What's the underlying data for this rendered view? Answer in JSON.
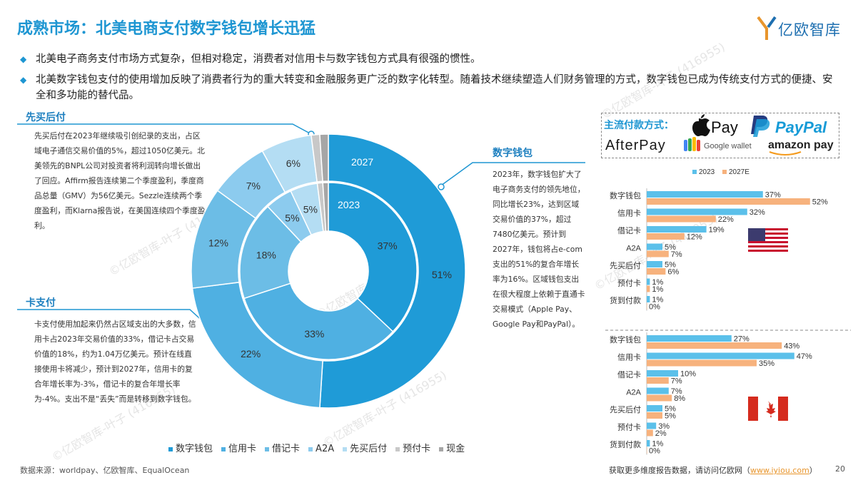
{
  "page": {
    "title": "成熟市场：北美电商支付数字钱包增长迅猛",
    "logo_text": "亿欧智库",
    "bullets": [
      "北美电子商务支付市场方式复杂，但相对稳定，消费者对信用卡与数字钱包方式具有很强的惯性。",
      "北美数字钱包支付的使用增加反映了消费者行为的重大转变和金融服务更广泛的数字化转型。随着技术继续塑造人们财务管理的方式，数字钱包已成为传统支付方式的便捷、安全和多功能的替代品。"
    ],
    "source": "数据来源：worldpay、亿欧智库、EqualOcean",
    "footer_text": "获取更多维度报告数据，请访问亿欧网（",
    "footer_link": "www.iyiou.com",
    "footer_end": "）",
    "page_number": "20",
    "watermark": "©亿欧智库-叶子 (416955)"
  },
  "panels": {
    "bnpl": {
      "title": "先买后付",
      "text": "先买后付在2023年继续吸引创纪录的支出，占区域电子通信交易价值的5%，超过1050亿美元。北美领先的BNPL公司对投资者将利润转向增长做出了回应。Affirm报告连续第二个季度盈利，季度商品总量（GMV）为56亿美元。Sezzle连续两个季度盈利，而Klarna报告说，在美国连续四个季度盈利。"
    },
    "card": {
      "title": "卡支付",
      "text": "卡支付使用加起来仍然占区域支出的大多数，信用卡占2023年交易价值的33%，借记卡占交易价值的18%，约为1.04万亿美元。预计在线直接使用卡将减少，预计到2027年，信用卡的复合年增长率为-3%，借记卡的复合年增长率为-4%。支出不是“丢失”而是转移到数字钱包。"
    },
    "wallet": {
      "title": "数字钱包",
      "text": "2023年，数字钱包扩大了电子商务支付的领先地位，同比增长23%，达到区域交易价值的37%，超过7480亿美元。预计到2027年，钱包将占e-com支出的51%的复合年增长率为16%。区域钱包支出在很大程度上依赖于直通卡交易模式（Apple Pay、Google Pay和PayPal）。"
    }
  },
  "payments": {
    "label": "主流付款方式：",
    "logos": [
      "Pay",
      "PayPal",
      "AfterPay",
      "Google wallet",
      "amazon pay"
    ]
  },
  "colors": {
    "title_blue": "#1e96d2",
    "wallet": "#1f9bd7",
    "credit": "#4fb0e2",
    "debit": "#6cbde6",
    "a2a": "#8ccbee",
    "bnpl": "#b4ddf3",
    "prepaid": "#c8c8c8",
    "cash": "#a6a6a6",
    "bar_2023": "#5bc0ea",
    "bar_2027": "#f7b27d"
  },
  "chart_data": [
    {
      "type": "pie",
      "subtype": "donut",
      "title": "",
      "legend": [
        "数字钱包",
        "信用卡",
        "借记卡",
        "A2A",
        "先买后付",
        "预付卡",
        "现金"
      ],
      "legend_position": "bottom",
      "series": [
        {
          "name": "2023",
          "labels": [
            "数字钱包",
            "信用卡",
            "借记卡",
            "A2A",
            "先买后付",
            "预付卡",
            "现金"
          ],
          "values": [
            37,
            33,
            18,
            5,
            5,
            1,
            1
          ]
        },
        {
          "name": "2027",
          "labels": [
            "数字钱包",
            "信用卡",
            "借记卡",
            "A2A",
            "先买后付",
            "预付卡",
            "现金"
          ],
          "values": [
            51,
            22,
            12,
            7,
            6,
            1,
            1
          ]
        }
      ]
    },
    {
      "type": "bar",
      "orientation": "horizontal",
      "title": "",
      "country": "US",
      "legend": [
        "2023",
        "2027E"
      ],
      "legend_position": "top",
      "categories": [
        "数字钱包",
        "信用卡",
        "借记卡",
        "A2A",
        "先买后付",
        "预付卡",
        "货到付款"
      ],
      "series": [
        {
          "name": "2023",
          "values": [
            37,
            32,
            19,
            5,
            5,
            1,
            1
          ]
        },
        {
          "name": "2027E",
          "values": [
            52,
            22,
            12,
            7,
            6,
            1,
            0
          ]
        }
      ]
    },
    {
      "type": "bar",
      "orientation": "horizontal",
      "title": "",
      "country": "Canada",
      "categories": [
        "数字钱包",
        "信用卡",
        "借记卡",
        "A2A",
        "先买后付",
        "预付卡",
        "货到付款"
      ],
      "series": [
        {
          "name": "2023",
          "values": [
            27,
            47,
            10,
            7,
            5,
            3,
            1
          ]
        },
        {
          "name": "2027E",
          "values": [
            43,
            35,
            7,
            8,
            5,
            2,
            0
          ]
        }
      ]
    }
  ]
}
